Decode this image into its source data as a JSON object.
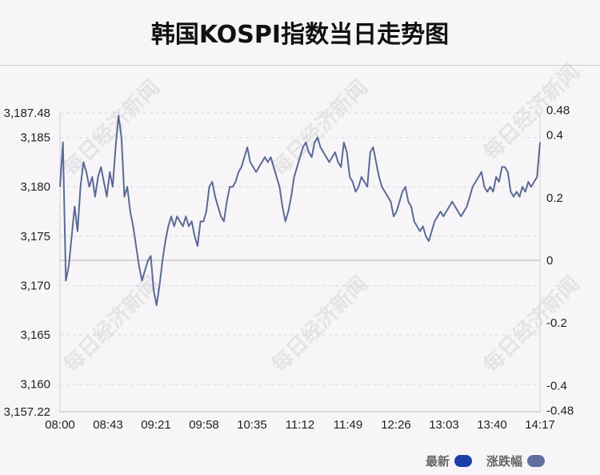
{
  "title": "韩国KOSPI指数当日走势图",
  "watermark": "每日经济新闻",
  "legend": [
    {
      "label": "最新",
      "color": "#1b3faa"
    },
    {
      "label": "涨跌幅",
      "color": "#5f6fa0"
    }
  ],
  "chart_data": {
    "type": "line",
    "x_ticks": [
      "08:00",
      "08:43",
      "09:21",
      "09:58",
      "10:35",
      "11:12",
      "11:49",
      "12:26",
      "13:03",
      "13:40",
      "14:17"
    ],
    "y_left_ticks": [
      "3,187.48",
      "3,185",
      "3,180",
      "3,175",
      "3,170",
      "3,165",
      "3,160",
      "3,157.22"
    ],
    "y_right_ticks": [
      "0.48",
      "0.4",
      "0.2",
      "0",
      "-0.2",
      "-0.4",
      "-0.48"
    ],
    "ylim": [
      3157.22,
      3187.48
    ],
    "baseline": 3172.55,
    "line_color": "#5a6a96",
    "series": [
      {
        "values": [
          3180.0,
          3184.5,
          3170.5,
          3172.0,
          3175.0,
          3178.0,
          3175.5,
          3180.0,
          3182.5,
          3181.5,
          3180.0,
          3181.0,
          3179.0,
          3181.0,
          3182.0,
          3180.5,
          3179.0,
          3181.5,
          3180.0,
          3184.0,
          3187.2,
          3185.0,
          3179.0,
          3180.0,
          3177.5,
          3176.0,
          3174.0,
          3172.0,
          3170.5,
          3171.5,
          3172.5,
          3173.0,
          3169.5,
          3168.0,
          3170.0,
          3172.5,
          3174.5,
          3176.0,
          3177.0,
          3176.0,
          3177.0,
          3176.5,
          3176.0,
          3177.0,
          3176.0,
          3176.5,
          3175.0,
          3174.0,
          3176.5,
          3176.5,
          3177.5,
          3180.0,
          3180.5,
          3179.0,
          3178.0,
          3177.0,
          3176.5,
          3178.5,
          3180.0,
          3180.0,
          3180.5,
          3181.5,
          3182.0,
          3183.0,
          3184.0,
          3182.5,
          3182.0,
          3181.5,
          3182.0,
          3182.5,
          3183.0,
          3182.5,
          3183.0,
          3182.0,
          3181.0,
          3180.0,
          3178.0,
          3176.5,
          3177.5,
          3179.0,
          3181.0,
          3182.0,
          3183.0,
          3184.0,
          3184.5,
          3183.5,
          3183.0,
          3184.5,
          3185.0,
          3184.0,
          3183.5,
          3183.0,
          3182.5,
          3183.0,
          3183.5,
          3182.5,
          3182.0,
          3184.5,
          3183.5,
          3181.0,
          3180.5,
          3179.5,
          3180.0,
          3181.0,
          3180.5,
          3180.0,
          3183.5,
          3184.0,
          3182.5,
          3181.0,
          3180.0,
          3179.5,
          3179.0,
          3178.5,
          3177.0,
          3177.5,
          3178.5,
          3179.5,
          3180.0,
          3178.5,
          3178.0,
          3176.5,
          3176.0,
          3175.5,
          3176.0,
          3175.0,
          3174.5,
          3175.5,
          3176.5,
          3177.0,
          3177.5,
          3177.0,
          3177.5,
          3178.0,
          3178.5,
          3178.0,
          3177.5,
          3177.0,
          3177.5,
          3178.0,
          3179.0,
          3180.0,
          3180.5,
          3181.0,
          3181.5,
          3180.0,
          3179.5,
          3180.0,
          3179.5,
          3181.0,
          3180.5,
          3182.0,
          3182.0,
          3181.5,
          3179.5,
          3179.0,
          3179.5,
          3179.0,
          3180.0,
          3179.5,
          3180.5,
          3180.0,
          3180.5,
          3181.0,
          3184.5
        ]
      }
    ]
  }
}
